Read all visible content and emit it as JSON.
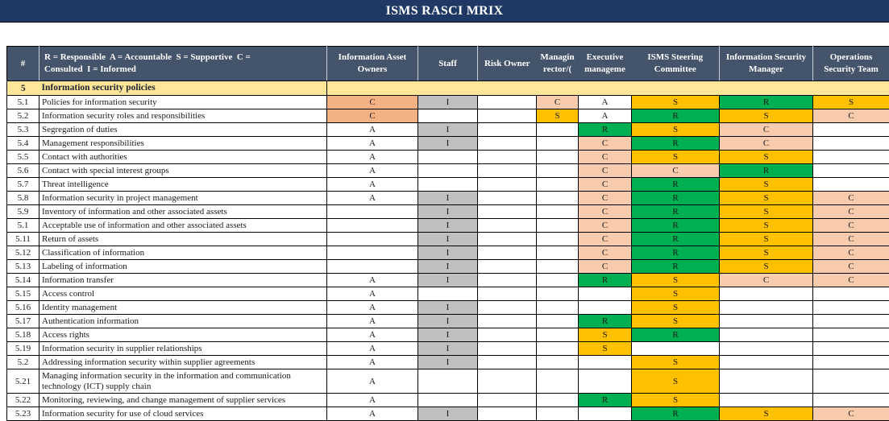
{
  "title": "ISMS RASCI MRIX",
  "colors": {
    "title_bg": "#1F3864",
    "header_bg": "#44546A",
    "section_bg": "#FFE699",
    "responsible": "#00B050",
    "supportive": "#FFC000",
    "consulted": "#F8CBAD",
    "consulted_dark": "#F4B183",
    "informed": "#BFBFBF",
    "accountable": "#FFFFFF"
  },
  "color_map": {
    "R": "responsible",
    "S": "supportive",
    "C": "consulted",
    "I": "informed",
    "A": "accountable"
  },
  "columns": {
    "num": {
      "label": "#"
    },
    "desc": {
      "label": "R = Responsible  A = Accountable  S = Supportive  C =\nConsulted  I = Informed"
    },
    "iao": {
      "label": "Information Asset Owners"
    },
    "staff": {
      "label": "Staff"
    },
    "risk": {
      "label": "Risk Owner"
    },
    "md": {
      "lines": [
        "Managin",
        "rector/("
      ]
    },
    "exec": {
      "lines": [
        "Executive",
        "manageme"
      ]
    },
    "isms": {
      "label": "ISMS Steering Committee"
    },
    "ism": {
      "label": "Information Security Manager"
    },
    "ops": {
      "label": "Operations Security Team"
    }
  },
  "section": {
    "num": "5",
    "title": "Information security policies"
  },
  "cell_overrides": [
    {
      "row": 0,
      "col": "iao",
      "color": "consulted_dark"
    },
    {
      "row": 1,
      "col": "iao",
      "color": "consulted_dark"
    }
  ],
  "rows": [
    {
      "num": "5.1",
      "desc": "Policies for information security",
      "cells": {
        "iao": "C",
        "staff": "I",
        "md": "C",
        "exec": "A",
        "isms": "S",
        "ism": "R",
        "ops": "S"
      }
    },
    {
      "num": "5.2",
      "desc": "Information security roles and responsibilities",
      "cells": {
        "iao": "C",
        "md": "S",
        "exec": "A",
        "isms": "R",
        "ism": "S",
        "ops": "C"
      }
    },
    {
      "num": "5.3",
      "desc": "Segregation of duties",
      "cells": {
        "iao": "A",
        "staff": "I",
        "exec": "R",
        "isms": "S",
        "ism": "C"
      }
    },
    {
      "num": "5.4",
      "desc": "Management responsibilities",
      "cells": {
        "iao": "A",
        "staff": "I",
        "exec": "C",
        "isms": "R",
        "ism": "C"
      }
    },
    {
      "num": "5.5",
      "desc": "Contact with authorities",
      "cells": {
        "iao": "A",
        "exec": "C",
        "isms": "S",
        "ism": "S"
      }
    },
    {
      "num": "5.6",
      "desc": "Contact with special interest groups",
      "cells": {
        "iao": "A",
        "exec": "C",
        "isms": "C",
        "ism": "R"
      }
    },
    {
      "num": "5.7",
      "desc": "Threat intelligence",
      "cells": {
        "iao": "A",
        "exec": "C",
        "isms": "R",
        "ism": "S"
      }
    },
    {
      "num": "5.8",
      "desc": "Information security in project management",
      "cells": {
        "iao": "A",
        "staff": "I",
        "exec": "C",
        "isms": "R",
        "ism": "S",
        "ops": "C"
      }
    },
    {
      "num": "5.9",
      "desc": "Inventory of information and other associated assets",
      "cells": {
        "staff": "I",
        "exec": "C",
        "isms": "R",
        "ism": "S",
        "ops": "C"
      }
    },
    {
      "num": "5.1",
      "desc": "Acceptable use of information and other associated assets",
      "cells": {
        "staff": "I",
        "exec": "C",
        "isms": "R",
        "ism": "S",
        "ops": "C"
      }
    },
    {
      "num": "5.11",
      "desc": "Return of assets",
      "cells": {
        "staff": "I",
        "exec": "C",
        "isms": "R",
        "ism": "S",
        "ops": "C"
      }
    },
    {
      "num": "5.12",
      "desc": "Classification of information",
      "cells": {
        "staff": "I",
        "exec": "C",
        "isms": "R",
        "ism": "S",
        "ops": "C"
      }
    },
    {
      "num": "5.13",
      "desc": "Labeling of information",
      "cells": {
        "staff": "I",
        "exec": "C",
        "isms": "R",
        "ism": "S",
        "ops": "C"
      }
    },
    {
      "num": "5.14",
      "desc": "Information transfer",
      "cells": {
        "iao": "A",
        "staff": "I",
        "exec": "R",
        "isms": "S",
        "ism": "C",
        "ops": "C"
      }
    },
    {
      "num": "5.15",
      "desc": "Access control",
      "cells": {
        "iao": "A",
        "isms": "S"
      }
    },
    {
      "num": "5.16",
      "desc": "Identity management",
      "cells": {
        "iao": "A",
        "staff": "I",
        "isms": "S"
      }
    },
    {
      "num": "5.17",
      "desc": "Authentication information",
      "cells": {
        "iao": "A",
        "staff": "I",
        "exec": "R",
        "isms": "S"
      }
    },
    {
      "num": "5.18",
      "desc": "Access rights",
      "cells": {
        "iao": "A",
        "staff": "I",
        "exec": "S",
        "isms": "R"
      }
    },
    {
      "num": "5.19",
      "desc": "Information security in supplier relationships",
      "cells": {
        "iao": "A",
        "staff": "I",
        "exec": "S"
      }
    },
    {
      "num": "5.2",
      "desc": "Addressing information security within supplier agreements",
      "cells": {
        "iao": "A",
        "staff": "I",
        "isms": "S"
      }
    },
    {
      "num": "5.21",
      "desc": "Managing information security in the information and communication technology (ICT) supply chain",
      "tall": true,
      "cells": {
        "iao": "A",
        "isms": "S"
      }
    },
    {
      "num": "5.22",
      "desc": "Monitoring, reviewing, and change management of supplier services",
      "cells": {
        "iao": "A",
        "exec": "R",
        "isms": "S"
      }
    },
    {
      "num": "5.23",
      "desc": "Information security for use of cloud services",
      "cells": {
        "iao": "A",
        "staff": "I",
        "isms": "R",
        "ism": "S",
        "ops": "C"
      }
    }
  ]
}
